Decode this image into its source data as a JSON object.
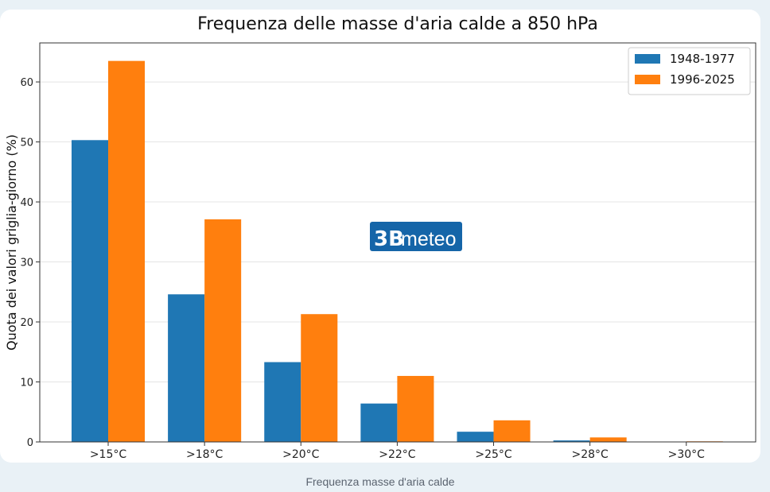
{
  "colors": {
    "series1": "#1f77b4",
    "series2": "#ff7f0e",
    "logo_bg": "#1565a8"
  },
  "logo": {
    "text_prefix": "3B",
    "text_suffix": "meteo"
  },
  "caption": "Frequenza masse d'aria calde",
  "chart_data": {
    "type": "bar",
    "title": "Frequenza delle masse d'aria calde a 850 hPa",
    "xlabel": "",
    "ylabel": "Quota dei valori griglia-giorno (%)",
    "categories": [
      ">15°C",
      ">18°C",
      ">20°C",
      ">22°C",
      ">25°C",
      ">28°C",
      ">30°C"
    ],
    "series": [
      {
        "name": "1948-1977",
        "values": [
          50.3,
          24.6,
          13.3,
          6.4,
          1.7,
          0.25,
          0.02
        ]
      },
      {
        "name": "1996-2025",
        "values": [
          63.5,
          37.1,
          21.3,
          11.0,
          3.6,
          0.75,
          0.1
        ]
      }
    ],
    "ylim": [
      0,
      66.5
    ],
    "yticks": [
      0,
      10,
      20,
      30,
      40,
      50,
      60
    ],
    "grid": true,
    "legend_position": "top-right"
  }
}
